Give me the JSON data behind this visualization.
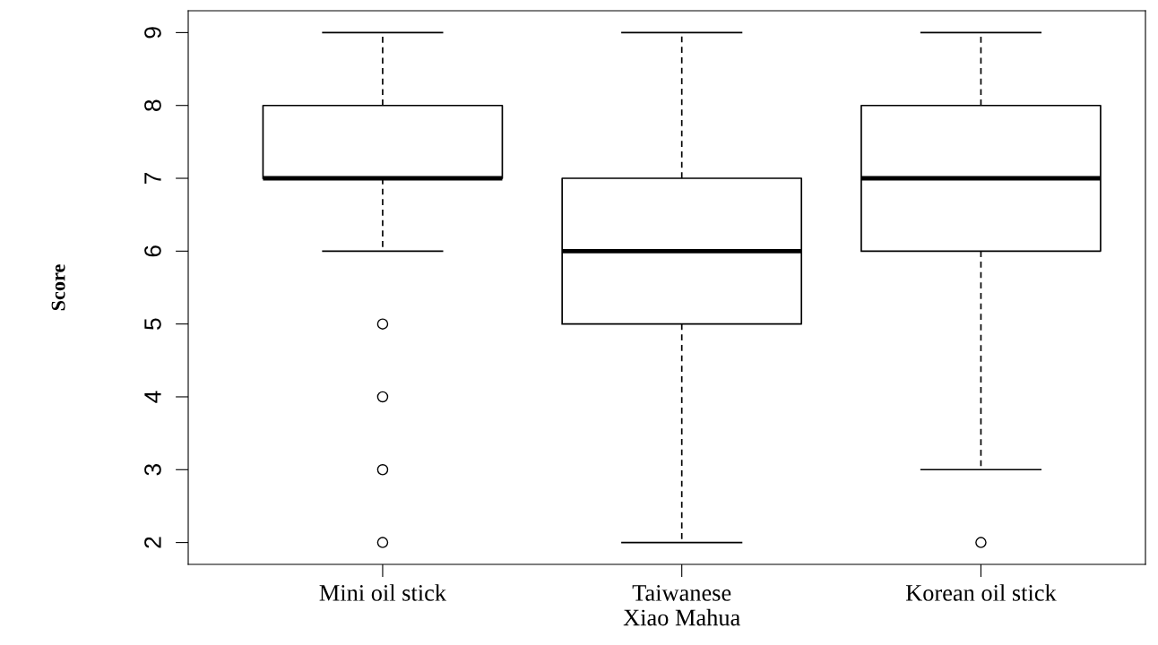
{
  "chart_data": {
    "type": "box",
    "ylabel": "Score",
    "categories": [
      "Mini oil stick",
      "Taiwanese\nXiao Mahua",
      "Korean oil stick"
    ],
    "boxes": [
      {
        "low": 6,
        "q1": 7,
        "median": 7,
        "q3": 8,
        "high": 9,
        "outliers": [
          5,
          4,
          3,
          2
        ]
      },
      {
        "low": 2,
        "q1": 5,
        "median": 6,
        "q3": 7,
        "high": 9
      },
      {
        "low": 3,
        "q1": 6,
        "median": 7,
        "q3": 8,
        "high": 9,
        "outliers": [
          2
        ]
      }
    ],
    "ylim": [
      1.7,
      9.3
    ],
    "yticks": [
      2,
      3,
      4,
      5,
      6,
      7,
      8,
      9
    ],
    "grid": false,
    "marker": "circle"
  }
}
